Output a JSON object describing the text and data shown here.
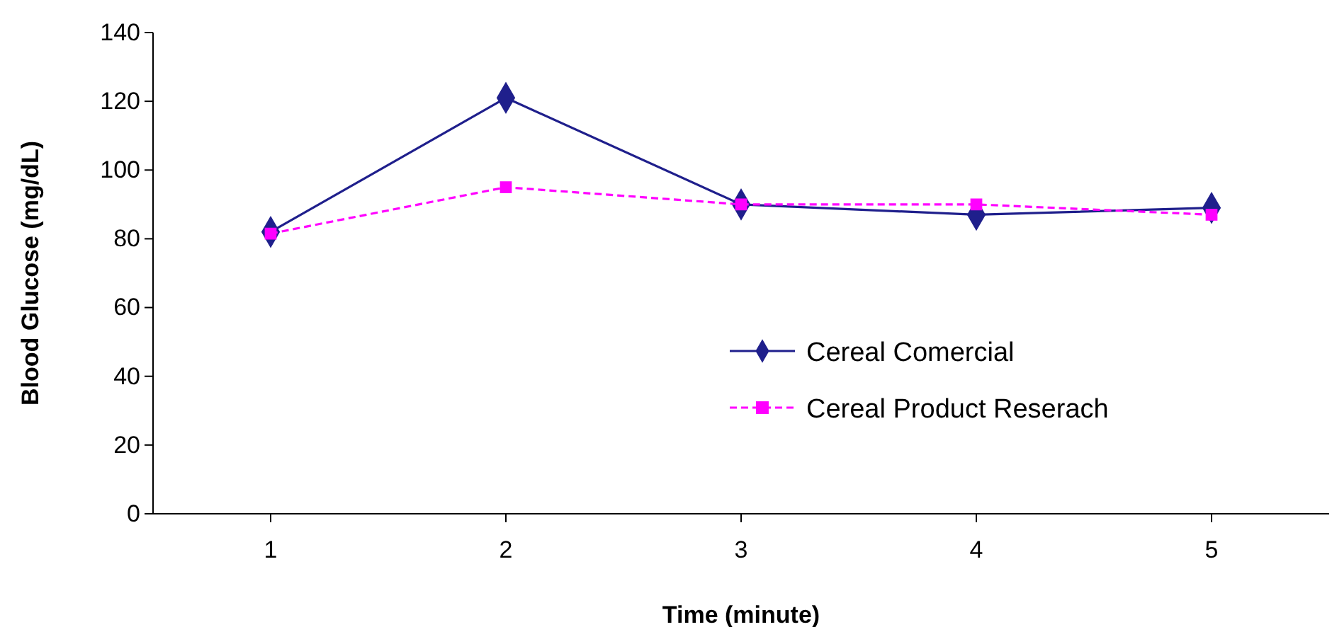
{
  "chart_data": {
    "type": "line",
    "xlabel": "Time (minute)",
    "ylabel": "Blood Glucose (mg/dL)",
    "categories": [
      "1",
      "2",
      "3",
      "4",
      "5"
    ],
    "series": [
      {
        "name": "Cereal Comercial",
        "color": "#1f1f8c",
        "values": [
          82,
          121,
          90,
          87,
          89
        ],
        "marker": "diamond",
        "line_style": "solid"
      },
      {
        "name": "Cereal Product Reserach",
        "color": "#ff00ff",
        "values": [
          81.5,
          95,
          90,
          90,
          87
        ],
        "marker": "square",
        "line_style": "dashed"
      }
    ],
    "ylim": [
      0,
      140
    ],
    "yticks": [
      0,
      20,
      40,
      60,
      80,
      100,
      120,
      140
    ],
    "grid": false,
    "legend": "bottom right"
  }
}
